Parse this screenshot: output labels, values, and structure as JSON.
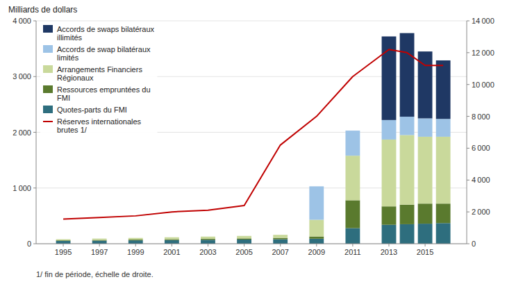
{
  "chart_data": {
    "type": "bar",
    "stacked": true,
    "title": "Milliards de dollars",
    "footnote": "1/ fin de période, échelle de droite.",
    "x": [
      1995,
      1997,
      1999,
      2001,
      2003,
      2005,
      2007,
      2009,
      2011,
      2013,
      2014,
      2015,
      2016
    ],
    "xlim": [
      1993.5,
      2017.3
    ],
    "xticks": [
      1995,
      1997,
      1999,
      2001,
      2003,
      2005,
      2007,
      2009,
      2011,
      2013,
      2015
    ],
    "ylim": [
      0,
      4000
    ],
    "yticks": [
      0,
      {
        "value": 1000,
        "label": "1 000"
      },
      {
        "value": 2000,
        "label": "2 000"
      },
      {
        "value": 3000,
        "label": "3 000"
      },
      {
        "value": 4000,
        "label": "4 000"
      }
    ],
    "y2lim": [
      0,
      14000
    ],
    "y2ticks": [
      0,
      {
        "value": 2000,
        "label": "2 000"
      },
      {
        "value": 4000,
        "label": "4 000"
      },
      {
        "value": 6000,
        "label": "6 000"
      },
      {
        "value": 8000,
        "label": "8 000"
      },
      {
        "value": 10000,
        "label": "10 000"
      },
      {
        "value": 12000,
        "label": "12 000"
      },
      {
        "value": 14000,
        "label": "14 000"
      }
    ],
    "grid": true,
    "legend": "upper-left",
    "series": [
      {
        "name": "Quotes-parts du FMI",
        "color": "#2e6e7e",
        "values": [
          50,
          55,
          60,
          65,
          70,
          75,
          80,
          90,
          280,
          340,
          350,
          360,
          370
        ]
      },
      {
        "name": "Ressources empruntées du\nFMI",
        "color": "#5a7a2e",
        "values": [
          10,
          12,
          14,
          16,
          18,
          20,
          25,
          40,
          500,
          330,
          350,
          360,
          350
        ]
      },
      {
        "name": "Arrangements Financiers\nRégionaux",
        "color": "#c9d99b",
        "values": [
          20,
          25,
          30,
          35,
          40,
          45,
          55,
          300,
          800,
          1200,
          1250,
          1200,
          1200
        ]
      },
      {
        "name": "Accords de swap bilatéraux\nlimités",
        "color": "#9dc3e6",
        "values": [
          0,
          0,
          0,
          0,
          0,
          0,
          0,
          600,
          450,
          350,
          330,
          330,
          320
        ]
      },
      {
        "name": "Accords de swaps bilatéraux\nillimités",
        "color": "#1f3864",
        "values": [
          0,
          0,
          0,
          0,
          0,
          0,
          0,
          0,
          0,
          1500,
          1500,
          1200,
          1050
        ]
      },
      {
        "name": "Réserves internationales\nbrutes 1/",
        "color": "#c00000",
        "type": "line",
        "axis": "y2",
        "values": [
          1550,
          1650,
          1750,
          2000,
          2100,
          2400,
          6200,
          8000,
          10500,
          12200,
          12000,
          11200,
          11200
        ]
      }
    ]
  }
}
